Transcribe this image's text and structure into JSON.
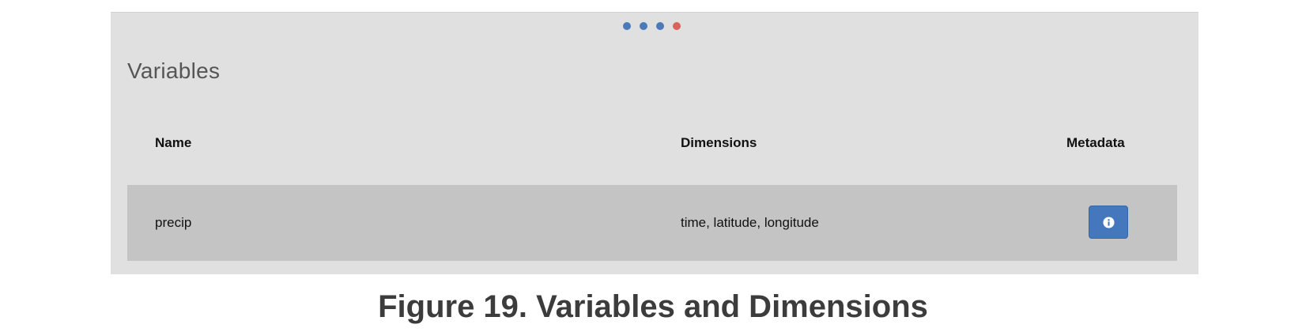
{
  "pager": {
    "dots": [
      {
        "color": "#4a7ab8",
        "active": false
      },
      {
        "color": "#4a7ab8",
        "active": false
      },
      {
        "color": "#4a7ab8",
        "active": false
      },
      {
        "color": "#d9625a",
        "active": true
      }
    ]
  },
  "section": {
    "title": "Variables"
  },
  "table": {
    "columns": {
      "name": "Name",
      "dimensions": "Dimensions",
      "metadata": "Metadata"
    },
    "rows": [
      {
        "name": "precip",
        "dimensions": "time, latitude, longitude",
        "metadata_icon": "info-icon"
      }
    ]
  },
  "caption": {
    "text": "Figure 19. Variables and Dimensions"
  },
  "colors": {
    "panel_bg": "#e0e0e0",
    "row_bg": "#c4c4c4",
    "button_bg": "#4477bb"
  }
}
